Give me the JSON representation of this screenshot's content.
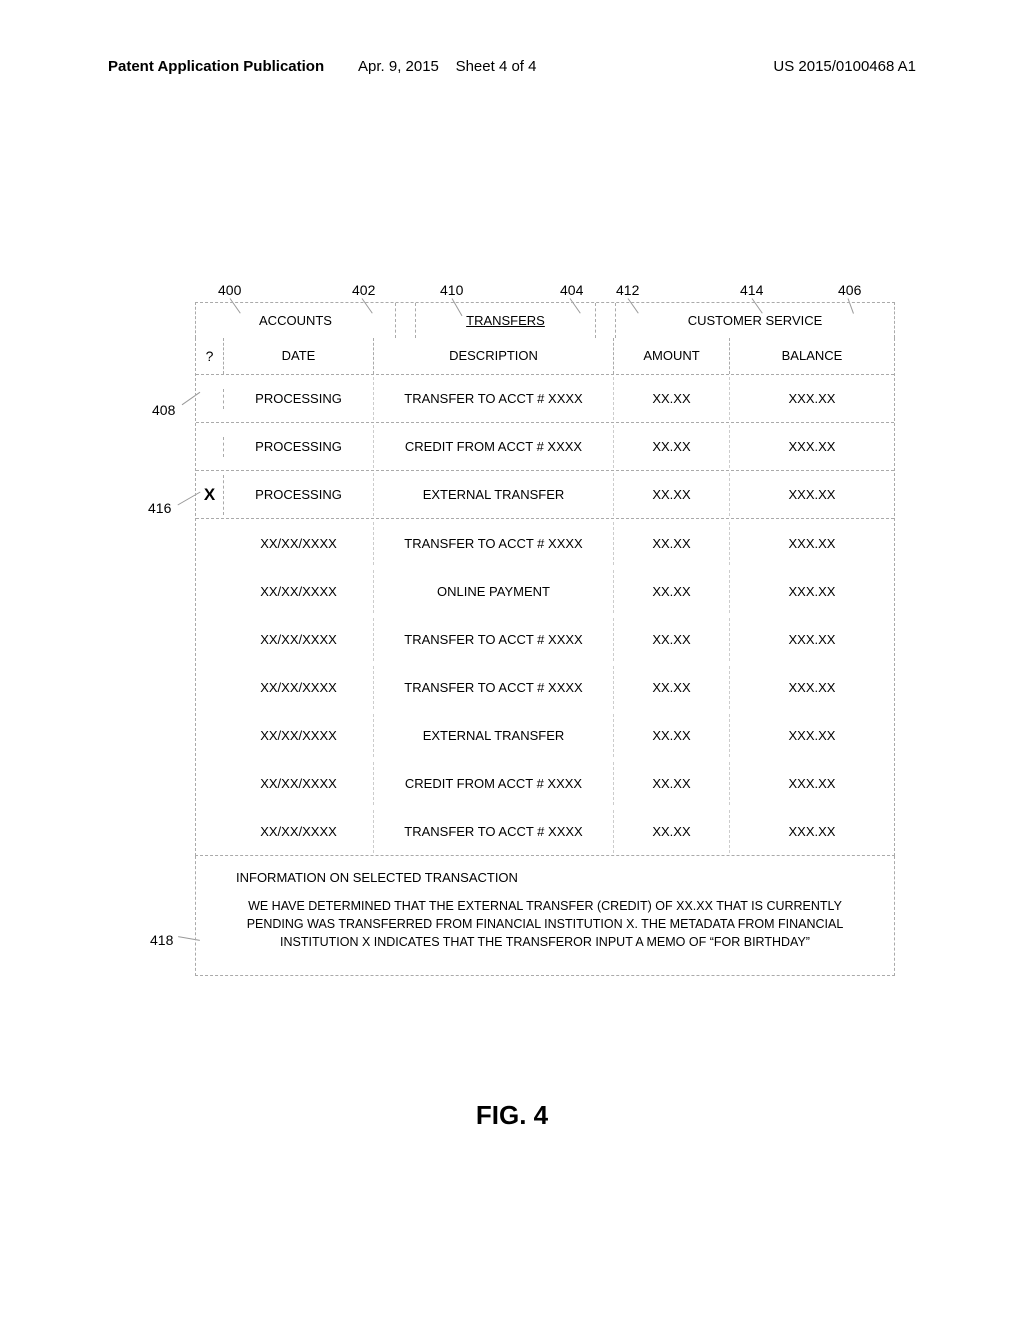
{
  "header": {
    "left": "Patent Application Publication",
    "center_date": "Apr. 9, 2015",
    "center_sheet": "Sheet 4 of 4",
    "right": "US 2015/0100468 A1"
  },
  "refs": {
    "r400": "400",
    "r402": "402",
    "r404": "404",
    "r406": "406",
    "r408": "408",
    "r410": "410",
    "r412": "412",
    "r414": "414",
    "r416": "416",
    "r418": "418"
  },
  "tabs": {
    "accounts": "ACCOUNTS",
    "transfers": "TRANSFERS",
    "customer_service": "CUSTOMER SERVICE"
  },
  "columns": {
    "q": "?",
    "date": "DATE",
    "desc": "DESCRIPTION",
    "amt": "AMOUNT",
    "bal": "BALANCE"
  },
  "rows": [
    {
      "q": "",
      "date": "PROCESSING",
      "desc": "TRANSFER TO ACCT # XXXX",
      "amt": "XX.XX",
      "bal": "XXX.XX",
      "processing": true
    },
    {
      "q": "",
      "date": "PROCESSING",
      "desc": "CREDIT FROM ACCT # XXXX",
      "amt": "XX.XX",
      "bal": "XXX.XX",
      "processing": true
    },
    {
      "q": "X",
      "date": "PROCESSING",
      "desc": "EXTERNAL TRANSFER",
      "amt": "XX.XX",
      "bal": "XXX.XX",
      "processing": true
    },
    {
      "q": "",
      "date": "XX/XX/XXXX",
      "desc": "TRANSFER TO ACCT # XXXX",
      "amt": "XX.XX",
      "bal": "XXX.XX",
      "processing": false
    },
    {
      "q": "",
      "date": "XX/XX/XXXX",
      "desc": "ONLINE PAYMENT",
      "amt": "XX.XX",
      "bal": "XXX.XX",
      "processing": false
    },
    {
      "q": "",
      "date": "XX/XX/XXXX",
      "desc": "TRANSFER TO ACCT # XXXX",
      "amt": "XX.XX",
      "bal": "XXX.XX",
      "processing": false
    },
    {
      "q": "",
      "date": "XX/XX/XXXX",
      "desc": "TRANSFER TO ACCT # XXXX",
      "amt": "XX.XX",
      "bal": "XXX.XX",
      "processing": false
    },
    {
      "q": "",
      "date": "XX/XX/XXXX",
      "desc": "EXTERNAL TRANSFER",
      "amt": "XX.XX",
      "bal": "XXX.XX",
      "processing": false
    },
    {
      "q": "",
      "date": "XX/XX/XXXX",
      "desc": "CREDIT FROM ACCT # XXXX",
      "amt": "XX.XX",
      "bal": "XXX.XX",
      "processing": false
    },
    {
      "q": "",
      "date": "XX/XX/XXXX",
      "desc": "TRANSFER TO ACCT # XXXX",
      "amt": "XX.XX",
      "bal": "XXX.XX",
      "processing": false
    }
  ],
  "info": {
    "title": "INFORMATION ON SELECTED TRANSACTION",
    "body": "WE HAVE DETERMINED THAT THE EXTERNAL TRANSFER (CREDIT) OF XX.XX THAT IS CURRENTLY PENDING WAS TRANSFERRED FROM FINANCIAL INSTITUTION X.  THE METADATA FROM FINANCIAL INSTITUTION X INDICATES THAT THE TRANSFEROR INPUT A MEMO OF “FOR BIRTHDAY”"
  },
  "figure_label": "FIG. 4"
}
